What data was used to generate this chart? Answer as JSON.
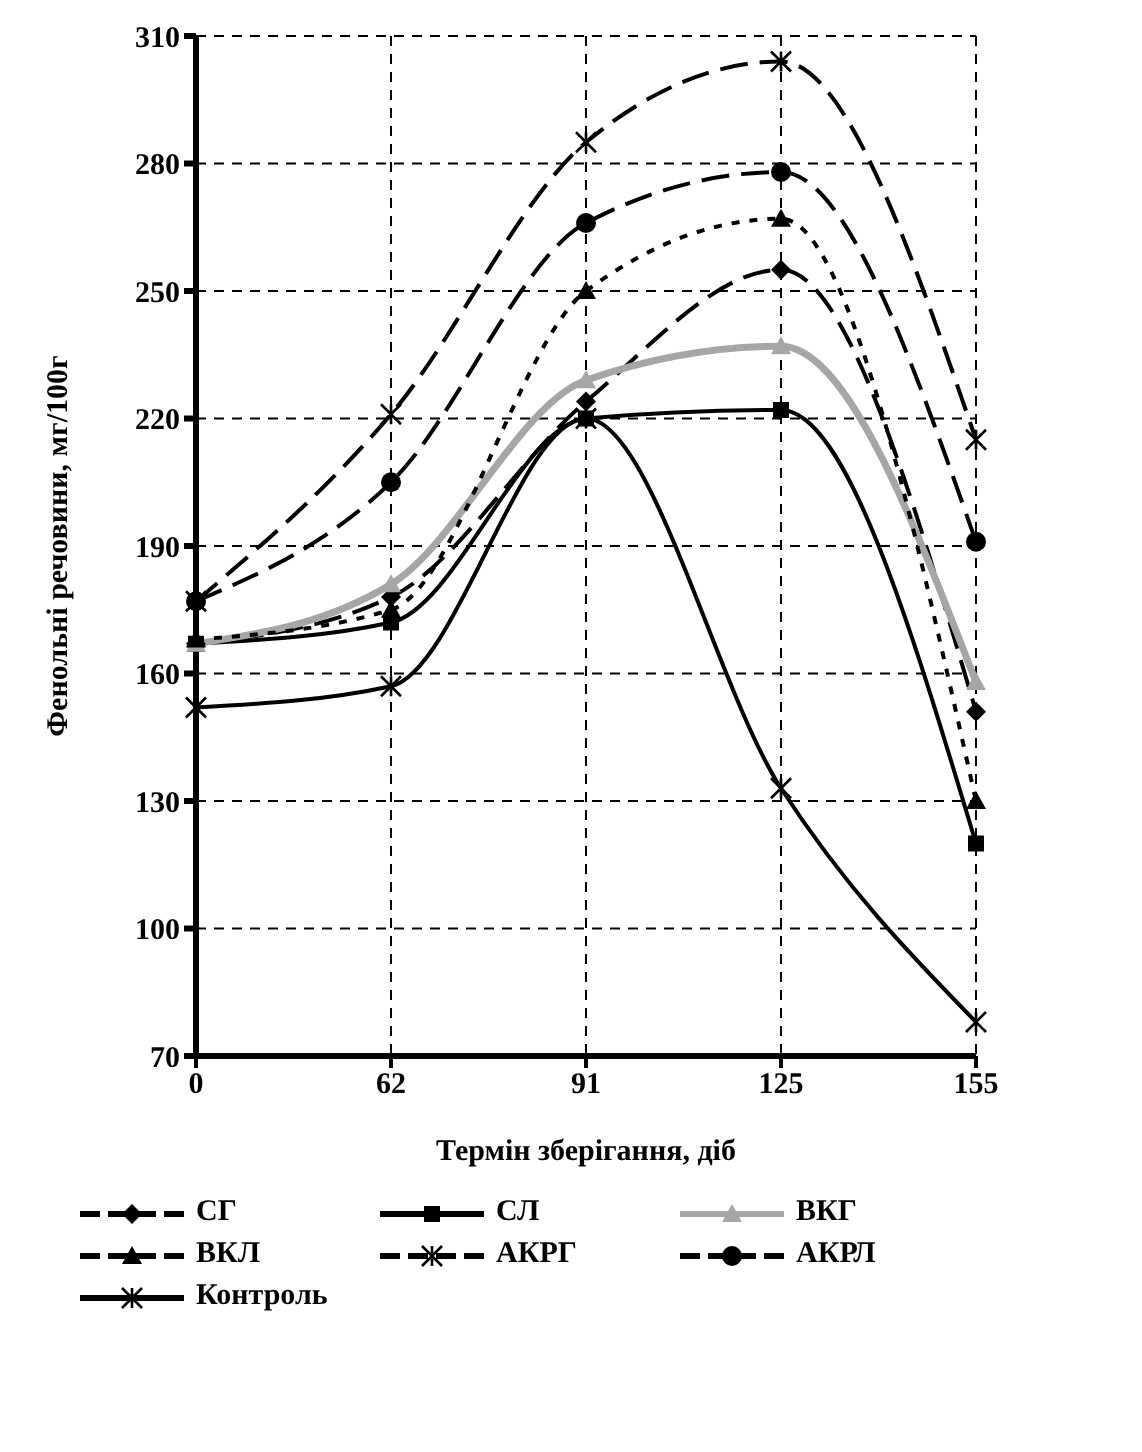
{
  "chart_data": {
    "type": "line",
    "xlabel": "Термін зберігання, діб",
    "ylabel": "Фенольні речовини, мг/100г",
    "categories": [
      "0",
      "62",
      "91",
      "125",
      "155"
    ],
    "series": [
      {
        "name": "СГ",
        "color": "#000000",
        "marker": "diamond",
        "line_style": "dashed",
        "values": [
          167,
          178,
          224,
          255,
          151
        ]
      },
      {
        "name": "СЛ",
        "color": "#000000",
        "marker": "square",
        "line_style": "solid",
        "values": [
          167,
          172,
          220,
          222,
          120
        ]
      },
      {
        "name": "ВКГ",
        "color": "#a6a6a6",
        "marker": "triangle",
        "line_style": "solid",
        "values": [
          167,
          181,
          229,
          237,
          158
        ]
      },
      {
        "name": "ВКЛ",
        "color": "#000000",
        "marker": "triangle",
        "line_style": "dotted",
        "values": [
          168,
          175,
          250,
          267,
          130
        ]
      },
      {
        "name": "АКРГ",
        "color": "#000000",
        "marker": "cross",
        "line_style": "dashed",
        "values": [
          177,
          221,
          285,
          304,
          215
        ]
      },
      {
        "name": "АКРЛ",
        "color": "#000000",
        "marker": "circle",
        "line_style": "dashed",
        "values": [
          177,
          205,
          266,
          278,
          191
        ]
      },
      {
        "name": "Контроль",
        "color": "#000000",
        "marker": "cross",
        "line_style": "solid",
        "values": [
          152,
          157,
          220,
          133,
          78
        ]
      }
    ],
    "ylim": [
      70,
      310
    ],
    "yticks": [
      70,
      100,
      130,
      160,
      190,
      220,
      250,
      280,
      310
    ],
    "grid": true,
    "legend": "bottom"
  }
}
